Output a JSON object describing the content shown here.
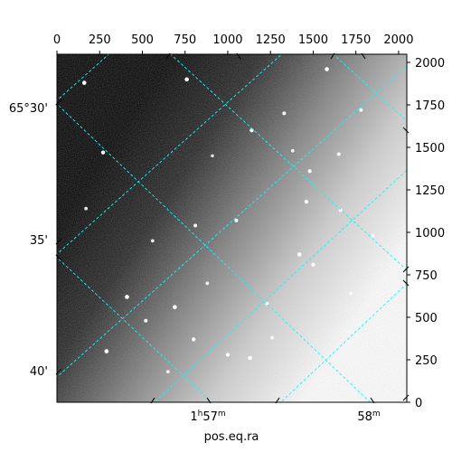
{
  "chart_data": {
    "type": "heatmap",
    "title": "",
    "xlabel": "pos.eq.ra",
    "ylabel": "",
    "pixel_axes": {
      "xlim": [
        0,
        2048
      ],
      "ylim": [
        0,
        2048
      ],
      "top_ticks": [
        0,
        250,
        500,
        750,
        1000,
        1250,
        1500,
        1750,
        2000
      ],
      "right_ticks": [
        0,
        250,
        500,
        750,
        1000,
        1250,
        1500,
        1750,
        2000
      ]
    },
    "world_axes": {
      "ra_ticks": [
        {
          "label_main": "1",
          "label_sup1": "h",
          "label_mid": "57",
          "label_sup2": "m",
          "ra_min": 57
        },
        {
          "label_main": "58",
          "label_sup1": "m",
          "label_mid": "",
          "label_sup2": "",
          "ra_min": 58
        }
      ],
      "dec_ticks": [
        {
          "label": "65°30'",
          "dec_arcmin": 30
        },
        {
          "label": "35'",
          "dec_arcmin": 35
        },
        {
          "label": "40'",
          "dec_arcmin": 40
        }
      ]
    },
    "grid": {
      "on": true,
      "color": "#00ffff",
      "style": "dashed"
    },
    "image": {
      "colormap": "gray",
      "gradient": "dark at left and top-left, brightening toward right and bottom-right",
      "stars": [
        {
          "x": 160,
          "y": 1880,
          "b": 1.0
        },
        {
          "x": 760,
          "y": 1900,
          "b": 1.0
        },
        {
          "x": 1580,
          "y": 1960,
          "b": 1.0
        },
        {
          "x": 1140,
          "y": 1600,
          "b": 0.9
        },
        {
          "x": 270,
          "y": 1470,
          "b": 0.9
        },
        {
          "x": 1480,
          "y": 1360,
          "b": 0.8
        },
        {
          "x": 1650,
          "y": 1460,
          "b": 0.8
        },
        {
          "x": 1460,
          "y": 1180,
          "b": 0.9
        },
        {
          "x": 1420,
          "y": 870,
          "b": 1.0
        },
        {
          "x": 1500,
          "y": 810,
          "b": 0.9
        },
        {
          "x": 410,
          "y": 620,
          "b": 1.0
        },
        {
          "x": 690,
          "y": 560,
          "b": 1.0
        },
        {
          "x": 800,
          "y": 370,
          "b": 0.9
        },
        {
          "x": 290,
          "y": 300,
          "b": 1.0
        },
        {
          "x": 1130,
          "y": 260,
          "b": 1.0
        },
        {
          "x": 1000,
          "y": 280,
          "b": 0.9
        },
        {
          "x": 520,
          "y": 480,
          "b": 0.8
        },
        {
          "x": 1660,
          "y": 1130,
          "b": 0.8
        },
        {
          "x": 1330,
          "y": 1700,
          "b": 0.8
        },
        {
          "x": 1050,
          "y": 1070,
          "b": 0.8
        },
        {
          "x": 810,
          "y": 1040,
          "b": 0.8
        },
        {
          "x": 1780,
          "y": 1720,
          "b": 0.8
        },
        {
          "x": 1230,
          "y": 580,
          "b": 0.8
        },
        {
          "x": 560,
          "y": 950,
          "b": 0.7
        },
        {
          "x": 880,
          "y": 700,
          "b": 0.7
        },
        {
          "x": 1260,
          "y": 380,
          "b": 0.7
        },
        {
          "x": 650,
          "y": 180,
          "b": 0.7
        },
        {
          "x": 170,
          "y": 1140,
          "b": 0.7
        },
        {
          "x": 1380,
          "y": 1480,
          "b": 0.7
        },
        {
          "x": 1850,
          "y": 980,
          "b": 0.7
        },
        {
          "x": 910,
          "y": 1450,
          "b": 0.6
        },
        {
          "x": 1720,
          "y": 640,
          "b": 0.6
        }
      ]
    }
  }
}
